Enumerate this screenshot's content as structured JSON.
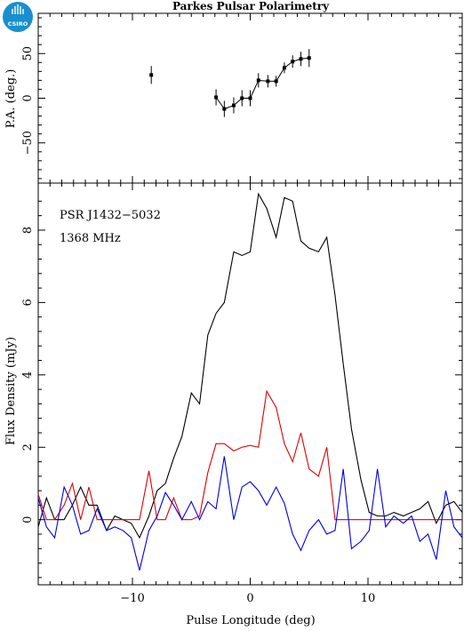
{
  "chart_data": [
    {
      "type": "scatter",
      "title": "Parkes Pulsar Polarimetry",
      "ylabel": "P.A. (deg.)",
      "xlim": [
        -18,
        18
      ],
      "ylim": [
        -95,
        95
      ],
      "ytick_labels": [
        "50",
        "0",
        "−50"
      ],
      "yticks": [
        50,
        0,
        -50
      ],
      "series": [
        {
          "x": [
            -8.4,
            -2.9,
            -2.2,
            -1.4,
            -0.7,
            0.0,
            0.7,
            1.5,
            2.2,
            2.9,
            3.6,
            4.3,
            5.0
          ],
          "values": [
            26,
            1,
            -12,
            -8,
            0,
            0,
            20,
            19,
            19,
            34,
            41,
            44,
            45
          ],
          "errors": [
            10,
            9,
            9,
            9,
            9,
            9,
            8,
            7,
            6,
            6,
            7,
            8,
            10
          ],
          "line_from_index": 1,
          "color": "#000000"
        }
      ]
    },
    {
      "type": "line",
      "xlabel": "Pulse Longitude (deg)",
      "ylabel": "Flux Density (mJy)",
      "xlim": [
        -18,
        18
      ],
      "ylim": [
        -1.8,
        9.3
      ],
      "xticks": [
        -10,
        0,
        10
      ],
      "xtick_labels": [
        "−10",
        "0",
        "10"
      ],
      "yticks": [
        0,
        2,
        4,
        6,
        8
      ],
      "ytick_labels": [
        "0",
        "2",
        "4",
        "6",
        "8"
      ],
      "annotations": [
        "PSR J1432−5032",
        "1368 MHz"
      ],
      "x": [
        -18.0,
        -17.3,
        -16.6,
        -15.8,
        -15.1,
        -14.4,
        -13.7,
        -13.0,
        -12.2,
        -11.5,
        -10.8,
        -10.1,
        -9.4,
        -8.6,
        -7.9,
        -7.2,
        -6.5,
        -5.8,
        -5.0,
        -4.3,
        -3.6,
        -2.9,
        -2.2,
        -1.4,
        -0.7,
        0.0,
        0.7,
        1.4,
        2.2,
        2.9,
        3.6,
        4.3,
        5.0,
        5.8,
        6.5,
        7.2,
        7.9,
        8.6,
        9.4,
        10.1,
        10.8,
        11.5,
        12.2,
        13.0,
        13.7,
        14.4,
        15.1,
        15.8,
        16.6,
        17.3,
        18.0
      ],
      "series": [
        {
          "color": "#000000",
          "values": [
            -0.2,
            0.6,
            0.0,
            0.0,
            0.4,
            0.9,
            0.4,
            0.4,
            -0.3,
            0.1,
            0.0,
            -0.1,
            -0.5,
            0.1,
            0.8,
            1.0,
            1.7,
            2.3,
            3.5,
            3.2,
            5.1,
            5.7,
            6.0,
            7.4,
            7.3,
            7.4,
            9.0,
            8.6,
            7.8,
            8.9,
            8.8,
            7.7,
            7.5,
            7.4,
            7.8,
            6.2,
            4.3,
            2.5,
            1.1,
            0.2,
            0.1,
            0.1,
            0.2,
            0.1,
            0.2,
            0.3,
            0.5,
            -0.1,
            0.4,
            0.5,
            0.2
          ]
        },
        {
          "color": "#e00000",
          "values": [
            0.7,
            0.0,
            0.0,
            0.4,
            1.0,
            0.0,
            0.9,
            0.0,
            0.0,
            0.0,
            0.0,
            0.0,
            0.0,
            1.35,
            0.0,
            0.0,
            0.6,
            0.0,
            0.0,
            0.1,
            1.3,
            2.1,
            2.1,
            1.9,
            2.0,
            2.05,
            2.0,
            3.55,
            3.1,
            2.1,
            1.6,
            2.4,
            1.4,
            1.2,
            2.0,
            0.0,
            0.0,
            0.0,
            0.0,
            0.0,
            0.0,
            0.0,
            0.0,
            0.0,
            0.0,
            0.0,
            0.0,
            0.0,
            0.0,
            0.0,
            0.0
          ]
        },
        {
          "color": "#0000e0",
          "values": [
            0.6,
            -0.2,
            -0.5,
            0.9,
            0.4,
            -0.4,
            -0.3,
            0.3,
            -0.3,
            -0.2,
            -0.3,
            -0.5,
            -1.4,
            -0.3,
            0.1,
            0.75,
            0.4,
            0.0,
            0.5,
            0.0,
            0.5,
            0.3,
            1.75,
            0.0,
            0.9,
            1.05,
            0.8,
            0.4,
            0.9,
            0.45,
            -0.4,
            -0.85,
            -0.3,
            0.0,
            -0.4,
            -0.3,
            1.4,
            -0.8,
            -0.6,
            -0.3,
            1.4,
            -0.2,
            0.1,
            -0.1,
            0.1,
            -0.6,
            -0.4,
            -1.1,
            0.8,
            -0.2,
            -0.5
          ]
        }
      ]
    }
  ]
}
